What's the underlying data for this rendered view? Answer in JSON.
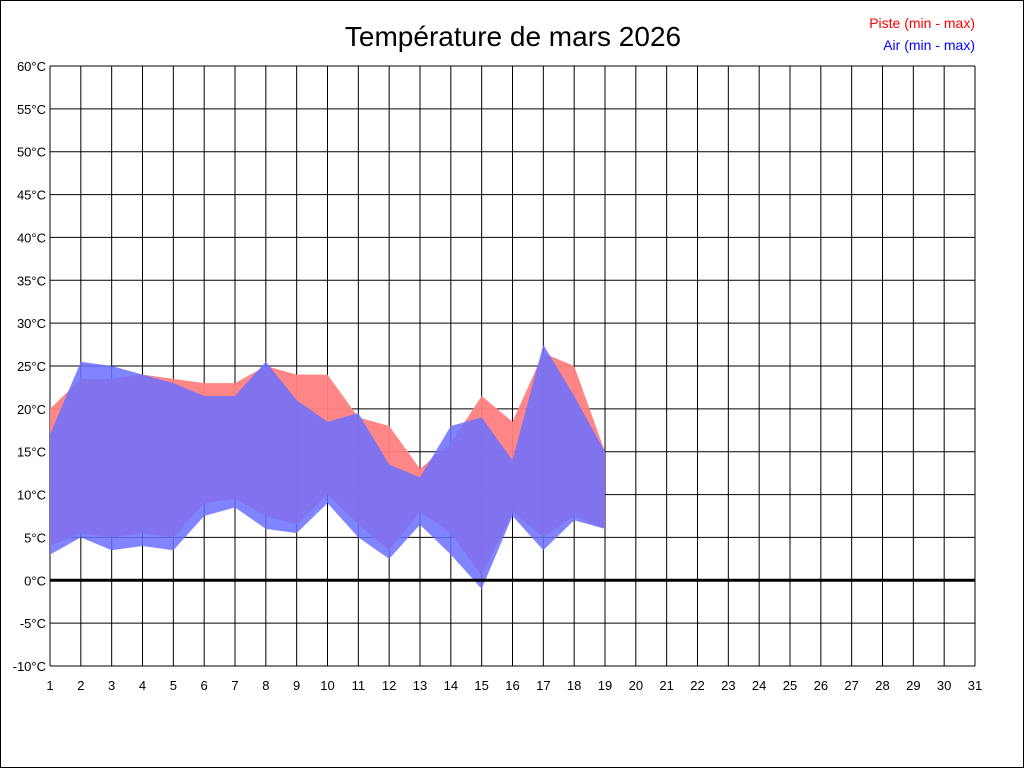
{
  "chart_data": {
    "type": "area",
    "title": "Température de mars 2026",
    "x_categories": [
      "1",
      "2",
      "3",
      "4",
      "5",
      "6",
      "7",
      "8",
      "9",
      "10",
      "11",
      "12",
      "13",
      "14",
      "15",
      "16",
      "17",
      "18",
      "19",
      "20",
      "21",
      "22",
      "23",
      "24",
      "25",
      "26",
      "27",
      "28",
      "29",
      "30",
      "31"
    ],
    "y_unit": "°C",
    "ylim": [
      -10,
      60
    ],
    "y_ticks": [
      60,
      55,
      50,
      45,
      40,
      35,
      30,
      25,
      20,
      15,
      10,
      5,
      0,
      -5,
      -10
    ],
    "y_tick_labels": [
      "60°C",
      "55°C",
      "50°C",
      "45°C",
      "40°C",
      "35°C",
      "30°C",
      "25°C",
      "20°C",
      "15°C",
      "10°C",
      "5°C",
      "0°C",
      "-5°C",
      "-10°C"
    ],
    "grid": true,
    "legend_position": "top-right",
    "series": [
      {
        "name": "Piste (min - max)",
        "color": "#ff0000",
        "fill": "#ff8080",
        "days": [
          1,
          2,
          3,
          4,
          5,
          6,
          7,
          8,
          9,
          10,
          11,
          12,
          13,
          14,
          15,
          16,
          17,
          18,
          19
        ],
        "min": [
          4.0,
          5.5,
          5.0,
          5.5,
          5.0,
          9.0,
          9.5,
          7.5,
          6.5,
          10.0,
          6.5,
          3.5,
          8.0,
          5.5,
          0.5,
          8.0,
          5.0,
          7.5,
          6.0
        ],
        "max": [
          20.0,
          23.5,
          23.5,
          24.0,
          23.5,
          23.0,
          23.0,
          25.0,
          24.0,
          24.0,
          19.0,
          18.0,
          13.0,
          16.0,
          21.5,
          18.5,
          26.5,
          25.0,
          15.0
        ]
      },
      {
        "name": "Air (min - max)",
        "color": "#0000ff",
        "fill": "#6a70ff",
        "days": [
          1,
          2,
          3,
          4,
          5,
          6,
          7,
          8,
          9,
          10,
          11,
          12,
          13,
          14,
          15,
          16,
          17,
          18,
          19
        ],
        "min": [
          3.0,
          5.0,
          3.5,
          4.0,
          3.5,
          7.5,
          8.5,
          6.0,
          5.5,
          9.0,
          5.0,
          2.5,
          6.5,
          3.0,
          -1.0,
          7.5,
          3.5,
          7.0,
          6.0
        ],
        "max": [
          17.0,
          25.5,
          25.0,
          24.0,
          23.0,
          21.5,
          21.5,
          25.5,
          21.0,
          18.5,
          19.5,
          13.5,
          12.0,
          18.0,
          19.0,
          14.0,
          27.5,
          21.5,
          15.0
        ]
      }
    ]
  }
}
